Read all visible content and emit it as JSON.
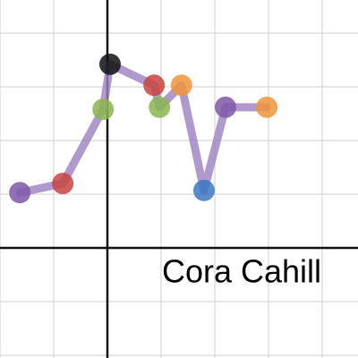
{
  "chart_data": {
    "type": "line",
    "x": [
      -1.63,
      -0.83,
      -0.08,
      0.05,
      0.87,
      0.97,
      1.38,
      1.8,
      2.2,
      2.97
    ],
    "values": [
      1.03,
      1.2,
      2.58,
      3.42,
      3.03,
      2.62,
      3.03,
      1.07,
      2.62,
      2.62
    ],
    "colors": [
      "#7e57a8",
      "#c74440",
      "#8ab54f",
      "#111111",
      "#c74440",
      "#8ab54f",
      "#f0943a",
      "#3b78c2",
      "#7e57a8",
      "#f0943a"
    ],
    "color": "#9b7fc0",
    "xlim": [
      -2,
      4.667
    ],
    "ylim": [
      -2.05,
      4.617
    ],
    "xticks": [
      -2,
      -1,
      0,
      1,
      2,
      3,
      4
    ],
    "yticks": [
      -2,
      -1,
      0,
      1,
      2,
      3,
      4
    ],
    "grid": true,
    "label": "Cora Cahill"
  }
}
